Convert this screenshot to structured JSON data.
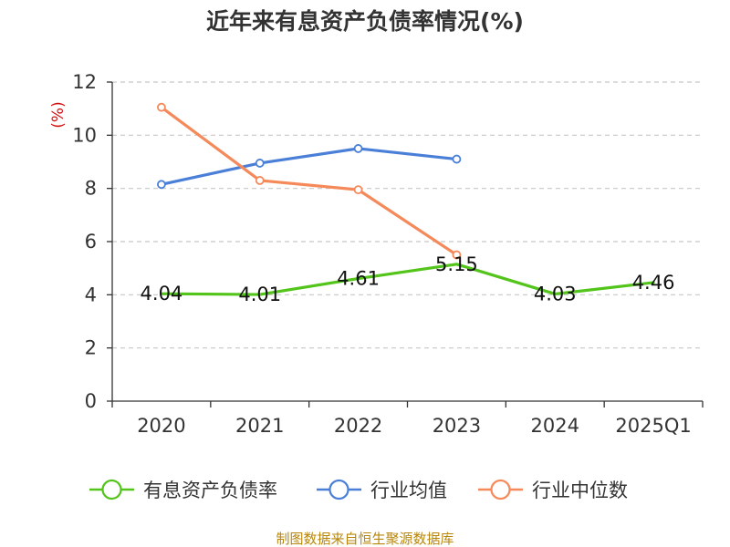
{
  "chart_data": {
    "type": "line",
    "title": "近年来有息资产负债率情况(%)",
    "ylabel": "(%)",
    "xlabel": "",
    "categories": [
      "2020",
      "2021",
      "2022",
      "2023",
      "2024",
      "2025Q1"
    ],
    "ylim": [
      0,
      12
    ],
    "yticks": [
      0,
      2,
      4,
      6,
      8,
      10,
      12
    ],
    "grid": true,
    "legend_position": "bottom",
    "series": [
      {
        "name": "有息资产负债率",
        "color": "#52c41a",
        "values": [
          4.04,
          4.01,
          4.61,
          5.15,
          4.03,
          4.46
        ],
        "labels": [
          "4.04",
          "4.01",
          "4.61",
          "5.15",
          "4.03",
          "4.46"
        ],
        "markers": false
      },
      {
        "name": "行业均值",
        "color": "#4a7fd8",
        "values": [
          8.15,
          8.95,
          9.5,
          9.1,
          null,
          null
        ],
        "markers": true
      },
      {
        "name": "行业中位数",
        "color": "#f5895a",
        "values": [
          11.05,
          8.3,
          7.95,
          5.5,
          null,
          null
        ],
        "markers": true
      }
    ],
    "source": "制图数据来自恒生聚源数据库"
  }
}
